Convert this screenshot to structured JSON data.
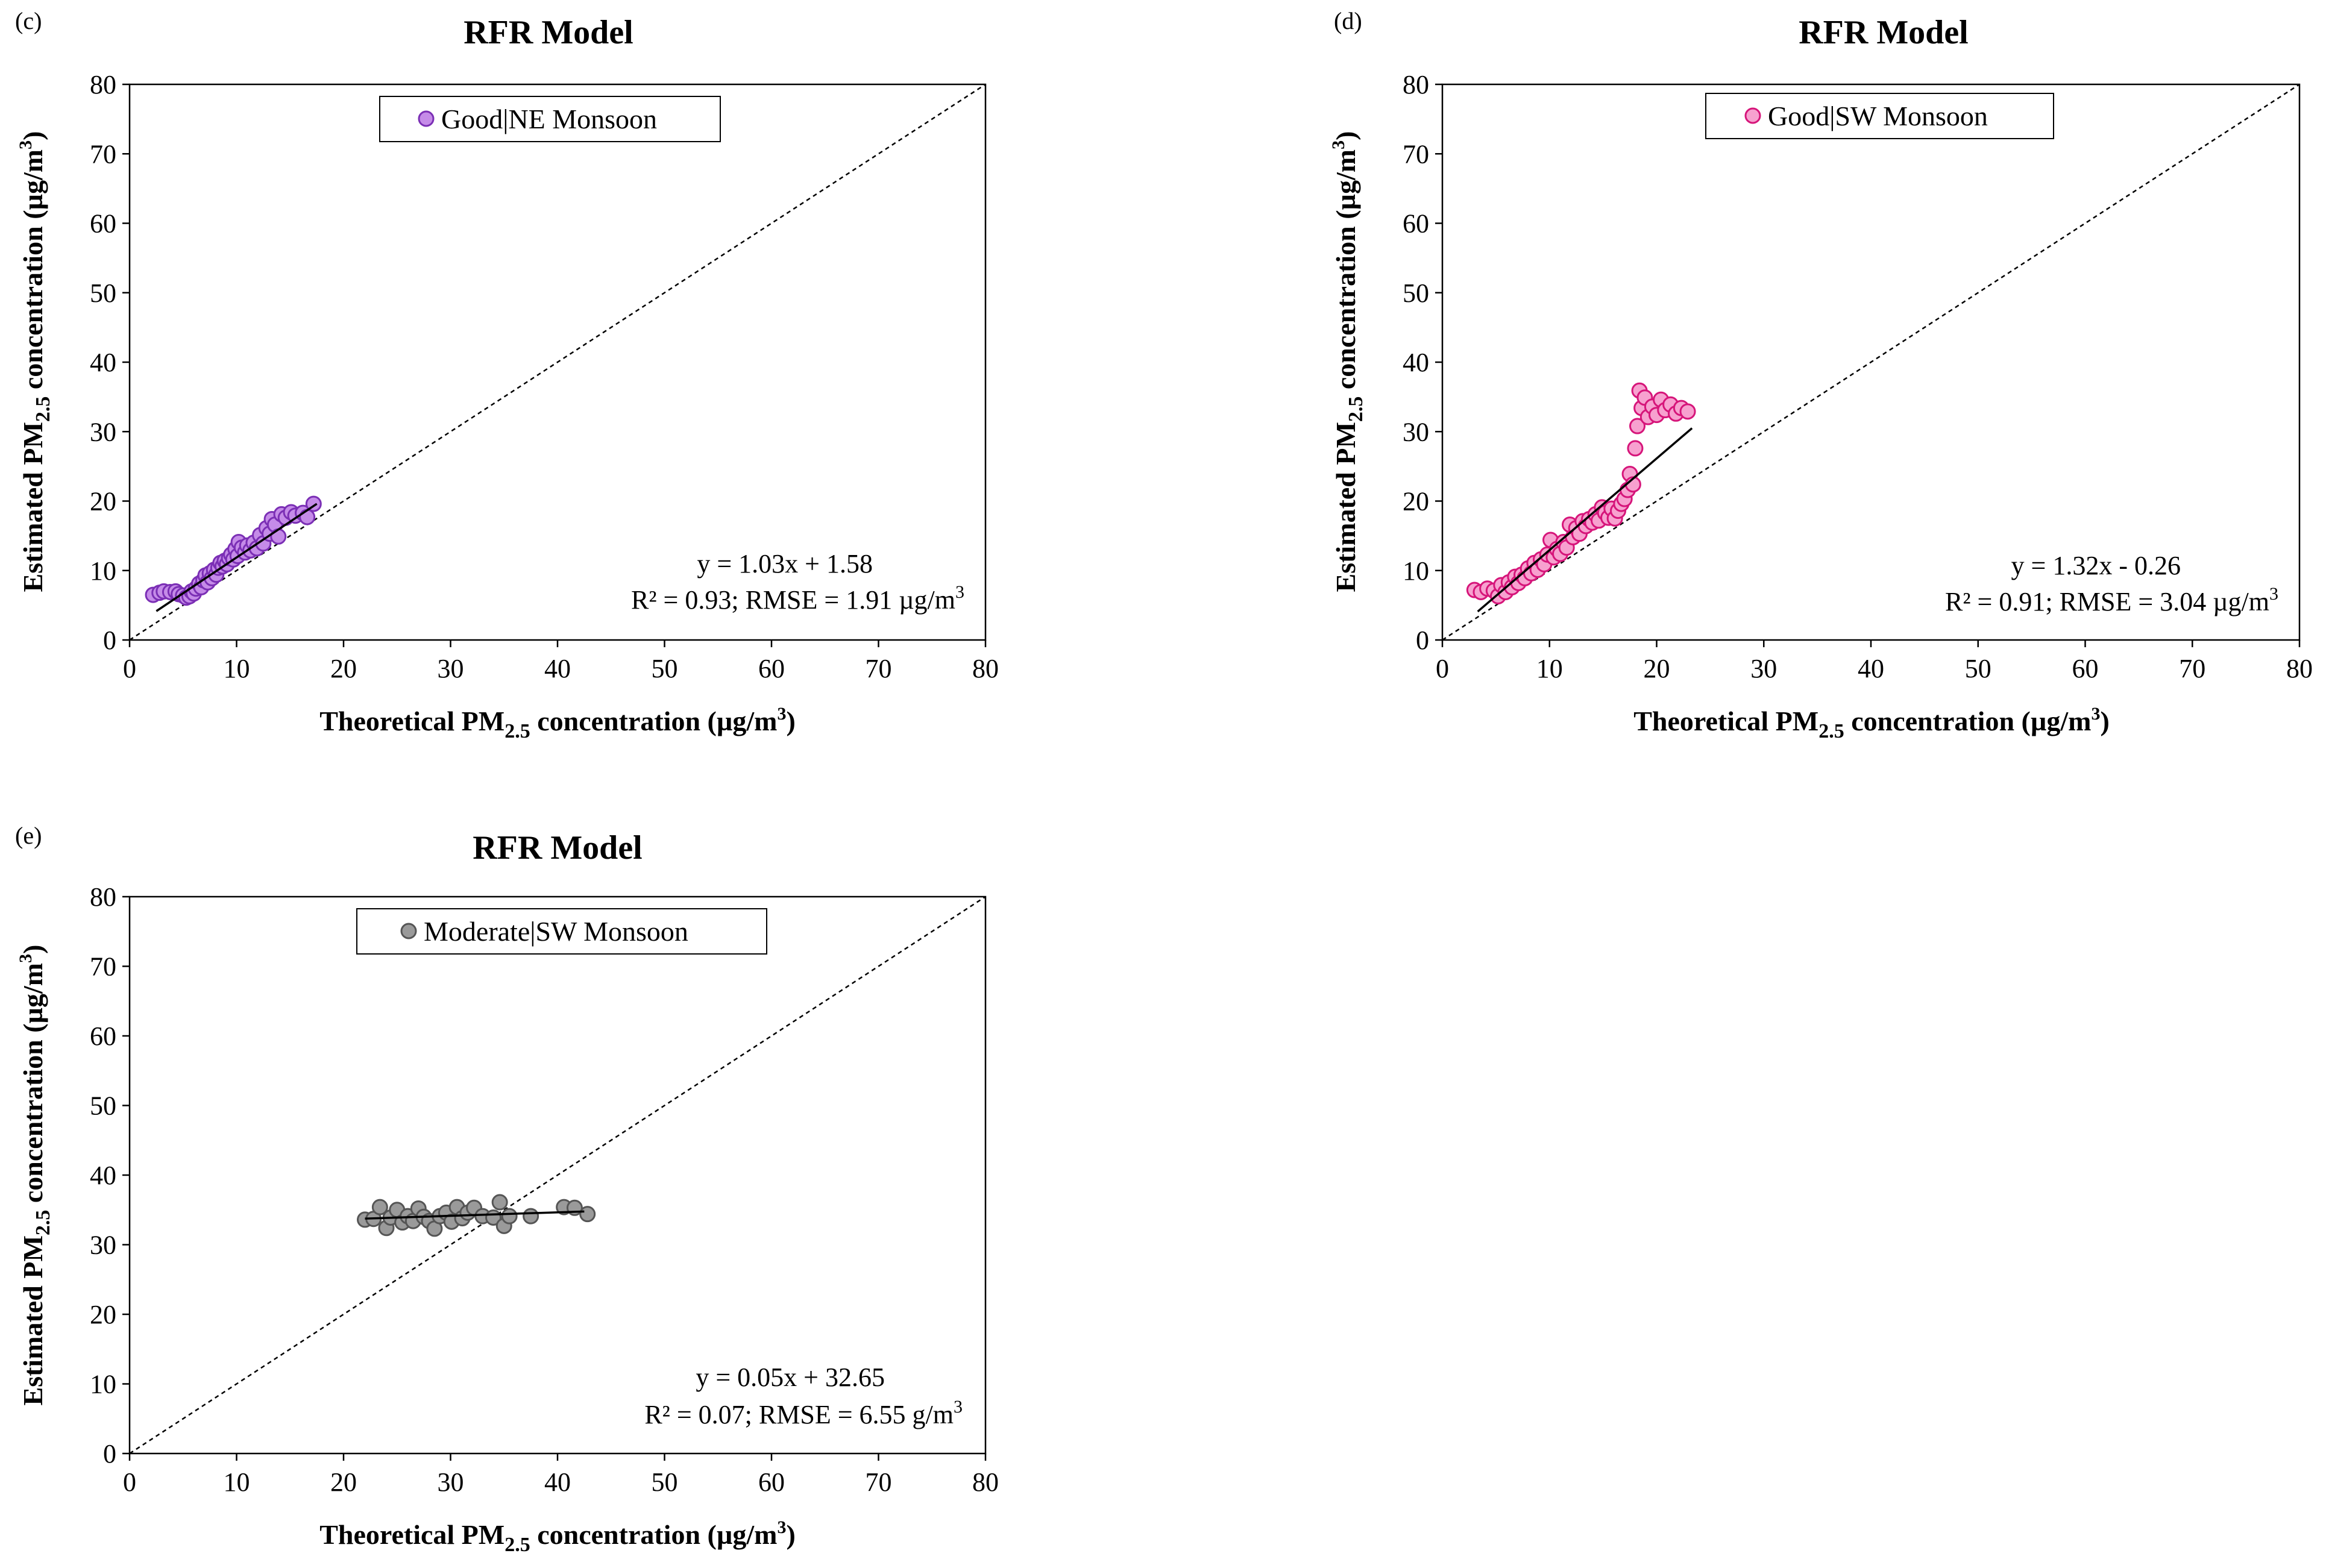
{
  "chart_data": [
    {
      "id": "c",
      "type": "scatter",
      "panel_label": "(c)",
      "title": "RFR Model",
      "xlabel": {
        "main": "Theoretical PM",
        "sub": "2.5",
        "rest": " concentration (µg/m",
        "sup": "3",
        "end": ")"
      },
      "ylabel": {
        "main": "Estimated PM",
        "sub": "2.5",
        "rest": " concentration (µg/m",
        "sup": "3",
        "end": ")"
      },
      "xlim": [
        0,
        80
      ],
      "ylim": [
        0,
        80
      ],
      "xticks": [
        "0",
        "10",
        "20",
        "30",
        "40",
        "50",
        "60",
        "70",
        "80"
      ],
      "yticks": [
        "0",
        "10",
        "20",
        "30",
        "40",
        "50",
        "60",
        "70",
        "80"
      ],
      "legend": "Good|NE Monsoon",
      "legend_position": "top-center",
      "marker_fill": "#c58be8",
      "marker_stroke": "#7b2fb5",
      "fit": {
        "slope": 1.03,
        "intercept": 1.58,
        "x_range": [
          2.5,
          17.5
        ]
      },
      "equation": "y = 1.03x + 1.58",
      "stats": {
        "main": "R² = 0.93; RMSE = 1.91 µg/m",
        "sup": "3"
      },
      "identity_line": true,
      "points": [
        [
          2.2,
          6.5
        ],
        [
          2.8,
          6.8
        ],
        [
          3.2,
          7.0
        ],
        [
          3.8,
          6.9
        ],
        [
          4.3,
          7.0
        ],
        [
          4.6,
          6.6
        ],
        [
          5.0,
          6.4
        ],
        [
          5.3,
          6.1
        ],
        [
          5.6,
          6.3
        ],
        [
          5.8,
          7.0
        ],
        [
          6.0,
          6.7
        ],
        [
          6.2,
          7.4
        ],
        [
          6.5,
          8.1
        ],
        [
          6.7,
          7.6
        ],
        [
          6.9,
          8.6
        ],
        [
          7.1,
          9.3
        ],
        [
          7.3,
          8.3
        ],
        [
          7.5,
          9.6
        ],
        [
          7.7,
          8.9
        ],
        [
          7.9,
          10.1
        ],
        [
          8.1,
          9.4
        ],
        [
          8.3,
          10.4
        ],
        [
          8.5,
          11.1
        ],
        [
          8.7,
          10.6
        ],
        [
          8.9,
          11.4
        ],
        [
          9.1,
          10.9
        ],
        [
          9.3,
          11.8
        ],
        [
          9.5,
          12.3
        ],
        [
          9.7,
          11.6
        ],
        [
          9.9,
          13.1
        ],
        [
          10.1,
          12.1
        ],
        [
          10.2,
          14.1
        ],
        [
          10.5,
          13.3
        ],
        [
          10.8,
          12.6
        ],
        [
          11.0,
          13.6
        ],
        [
          11.3,
          12.9
        ],
        [
          11.6,
          14.0
        ],
        [
          11.9,
          13.2
        ],
        [
          12.2,
          15.1
        ],
        [
          12.5,
          13.9
        ],
        [
          12.8,
          16.1
        ],
        [
          13.1,
          15.3
        ],
        [
          13.3,
          17.4
        ],
        [
          13.6,
          16.6
        ],
        [
          13.9,
          14.9
        ],
        [
          14.2,
          18.1
        ],
        [
          14.6,
          17.6
        ],
        [
          15.1,
          18.4
        ],
        [
          15.5,
          17.9
        ],
        [
          16.2,
          18.3
        ],
        [
          16.6,
          17.7
        ],
        [
          17.2,
          19.6
        ]
      ]
    },
    {
      "id": "d",
      "type": "scatter",
      "panel_label": "(d)",
      "title": "RFR Model",
      "xlabel": {
        "main": "Theoretical PM",
        "sub": "2.5",
        "rest": " concentration (µg/m",
        "sup": "3",
        "end": ")"
      },
      "ylabel": {
        "main": "Estimated PM",
        "sub": "2.5",
        "rest": " concentration (µg/m",
        "sup": "3",
        "end": ")"
      },
      "xlim": [
        0,
        80
      ],
      "ylim": [
        0,
        80
      ],
      "xticks": [
        "0",
        "10",
        "20",
        "30",
        "40",
        "50",
        "60",
        "70",
        "80"
      ],
      "yticks": [
        "0",
        "10",
        "20",
        "30",
        "40",
        "50",
        "60",
        "70",
        "80"
      ],
      "legend": "Good|SW Monsoon",
      "legend_position": "top-center",
      "marker_fill": "#f7a1cf",
      "marker_stroke": "#d6157a",
      "fit": {
        "slope": 1.32,
        "intercept": -0.26,
        "x_range": [
          3.3,
          23.3
        ]
      },
      "equation": "y = 1.32x - 0.26",
      "stats": {
        "main": "R² = 0.91; RMSE = 3.04 µg/m",
        "sup": "3"
      },
      "identity_line": true,
      "points": [
        [
          3.0,
          7.2
        ],
        [
          3.6,
          6.9
        ],
        [
          4.2,
          7.4
        ],
        [
          4.8,
          7.1
        ],
        [
          5.2,
          6.3
        ],
        [
          5.5,
          7.9
        ],
        [
          5.9,
          6.9
        ],
        [
          6.2,
          8.3
        ],
        [
          6.5,
          7.6
        ],
        [
          6.8,
          9.1
        ],
        [
          7.1,
          8.2
        ],
        [
          7.4,
          9.4
        ],
        [
          7.7,
          8.9
        ],
        [
          8.0,
          10.3
        ],
        [
          8.3,
          9.6
        ],
        [
          8.6,
          11.1
        ],
        [
          8.9,
          10.1
        ],
        [
          9.2,
          11.6
        ],
        [
          9.5,
          10.9
        ],
        [
          9.8,
          12.3
        ],
        [
          10.1,
          14.4
        ],
        [
          10.4,
          11.9
        ],
        [
          10.7,
          13.1
        ],
        [
          11.0,
          12.4
        ],
        [
          11.3,
          14.1
        ],
        [
          11.6,
          13.3
        ],
        [
          11.9,
          16.6
        ],
        [
          12.2,
          14.8
        ],
        [
          12.5,
          16.1
        ],
        [
          12.8,
          15.3
        ],
        [
          13.1,
          17.1
        ],
        [
          13.4,
          16.4
        ],
        [
          13.7,
          17.4
        ],
        [
          14.0,
          16.9
        ],
        [
          14.3,
          18.1
        ],
        [
          14.6,
          17.2
        ],
        [
          14.9,
          19.1
        ],
        [
          15.2,
          18.3
        ],
        [
          15.5,
          17.6
        ],
        [
          15.8,
          18.9
        ],
        [
          16.1,
          17.5
        ],
        [
          16.4,
          18.6
        ],
        [
          16.7,
          19.6
        ],
        [
          17.0,
          20.3
        ],
        [
          17.3,
          21.6
        ],
        [
          17.5,
          23.9
        ],
        [
          17.8,
          22.4
        ],
        [
          18.0,
          27.6
        ],
        [
          18.2,
          30.8
        ],
        [
          18.4,
          35.9
        ],
        [
          18.6,
          33.4
        ],
        [
          18.9,
          34.9
        ],
        [
          19.2,
          32.1
        ],
        [
          19.6,
          33.6
        ],
        [
          20.0,
          32.4
        ],
        [
          20.4,
          34.6
        ],
        [
          20.8,
          33.1
        ],
        [
          21.3,
          33.9
        ],
        [
          21.8,
          32.6
        ],
        [
          22.3,
          33.4
        ],
        [
          22.9,
          32.9
        ]
      ]
    },
    {
      "id": "e",
      "type": "scatter",
      "panel_label": "(e)",
      "title": "RFR Model",
      "xlabel": {
        "main": "Theoretical PM",
        "sub": "2.5",
        "rest": " concentration (µg/m",
        "sup": "3",
        "end": ")"
      },
      "ylabel": {
        "main": "Estimated PM",
        "sub": "2.5",
        "rest": " concentration (µg/m",
        "sup": "3",
        "end": ")"
      },
      "xlim": [
        0,
        80
      ],
      "ylim": [
        0,
        80
      ],
      "xticks": [
        "0",
        "10",
        "20",
        "30",
        "40",
        "50",
        "60",
        "70",
        "80"
      ],
      "yticks": [
        "0",
        "10",
        "20",
        "30",
        "40",
        "50",
        "60",
        "70",
        "80"
      ],
      "legend": "Moderate|SW Monsoon",
      "legend_position": "top-center",
      "marker_fill": "#9a9a9a",
      "marker_stroke": "#555555",
      "fit": {
        "slope": 0.05,
        "intercept": 32.65,
        "x_range": [
          22.0,
          42.5
        ]
      },
      "equation": "y = 0.05x + 32.65",
      "stats": {
        "main": "R² = 0.07; RMSE = 6.55 g/m",
        "sup": "3"
      },
      "identity_line": true,
      "points": [
        [
          22.0,
          33.6
        ],
        [
          22.8,
          33.7
        ],
        [
          23.4,
          35.4
        ],
        [
          24.0,
          32.4
        ],
        [
          24.4,
          33.9
        ],
        [
          25.0,
          35.0
        ],
        [
          25.5,
          33.2
        ],
        [
          26.0,
          34.1
        ],
        [
          26.5,
          33.4
        ],
        [
          27.0,
          35.2
        ],
        [
          27.5,
          34.0
        ],
        [
          28.0,
          33.4
        ],
        [
          28.5,
          32.3
        ],
        [
          29.0,
          34.1
        ],
        [
          29.6,
          34.6
        ],
        [
          30.1,
          33.3
        ],
        [
          30.6,
          35.4
        ],
        [
          31.1,
          33.8
        ],
        [
          31.6,
          34.6
        ],
        [
          32.2,
          35.3
        ],
        [
          33.0,
          34.1
        ],
        [
          34.0,
          33.9
        ],
        [
          34.6,
          36.1
        ],
        [
          35.0,
          32.7
        ],
        [
          35.5,
          34.1
        ],
        [
          37.5,
          34.1
        ],
        [
          40.6,
          35.4
        ],
        [
          41.6,
          35.3
        ],
        [
          42.8,
          34.4
        ]
      ]
    }
  ]
}
